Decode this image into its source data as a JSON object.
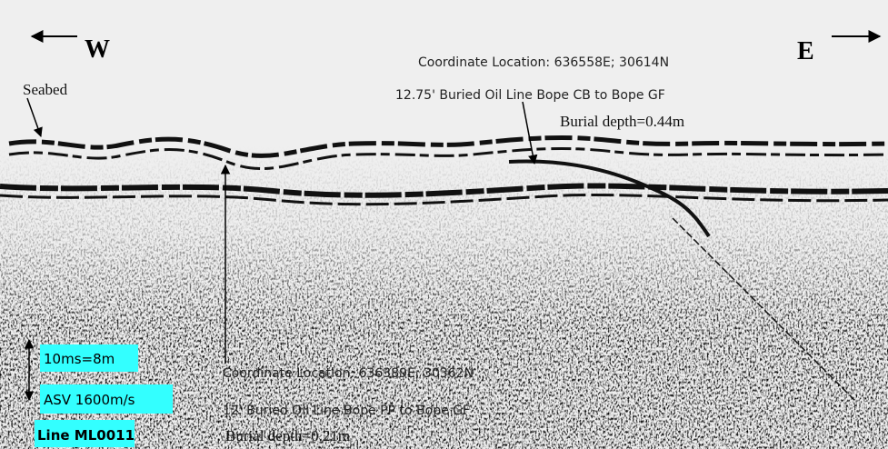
{
  "direction_west": "W",
  "direction_east": "E",
  "seabed_label": "Seabed",
  "target_1": {
    "coordinates": "Coordinate Location: 636558E; 30614N",
    "description": "12.75' Buried Oil Line Bope CB to Bope GF",
    "burial_depth": "Burial depth=0.44m"
  },
  "target_2": {
    "coordinates": "Coordinate Location: 636389E; 30362N",
    "description": "12' Buried Oil Line Bope PP to Bope GF",
    "burial_depth": "Burial depth=0.21m"
  },
  "scale": {
    "time_depth": "10ms=8m",
    "velocity": "ASV 1600m/s"
  },
  "line_id": "Line ML0011"
}
